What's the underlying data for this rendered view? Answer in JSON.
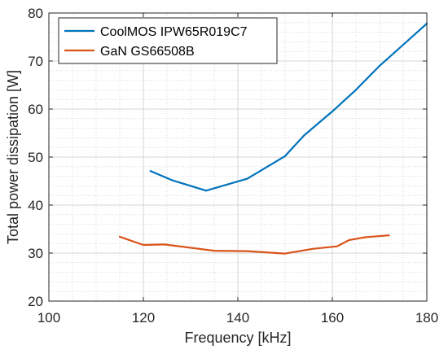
{
  "chart_data": {
    "type": "line",
    "xlabel": "Frequency [kHz]",
    "ylabel": "Total power dissipation [W]",
    "xlim": [
      100,
      180
    ],
    "ylim": [
      20,
      80
    ],
    "xticks": [
      100,
      120,
      140,
      160,
      180
    ],
    "yticks": [
      20,
      30,
      40,
      50,
      60,
      70,
      80
    ],
    "grid": "major and minor",
    "legend_position": "top-left",
    "series": [
      {
        "name": "CoolMOS IPW65R019C7",
        "color": "#0072BD",
        "x": [
          121.5,
          126,
          133.3,
          142,
          150,
          154,
          160,
          165,
          170,
          180
        ],
        "y": [
          47.1,
          45.2,
          43.0,
          45.5,
          50.2,
          54.5,
          59.5,
          64.0,
          69.0,
          77.8
        ]
      },
      {
        "name": "GaN GS66508B",
        "color": "#D95319",
        "x": [
          115,
          120,
          124.5,
          135,
          142,
          150,
          156,
          161,
          163.5,
          167,
          172
        ],
        "y": [
          33.4,
          31.7,
          31.8,
          30.5,
          30.4,
          29.9,
          30.9,
          31.4,
          32.7,
          33.3,
          33.7
        ]
      }
    ]
  }
}
